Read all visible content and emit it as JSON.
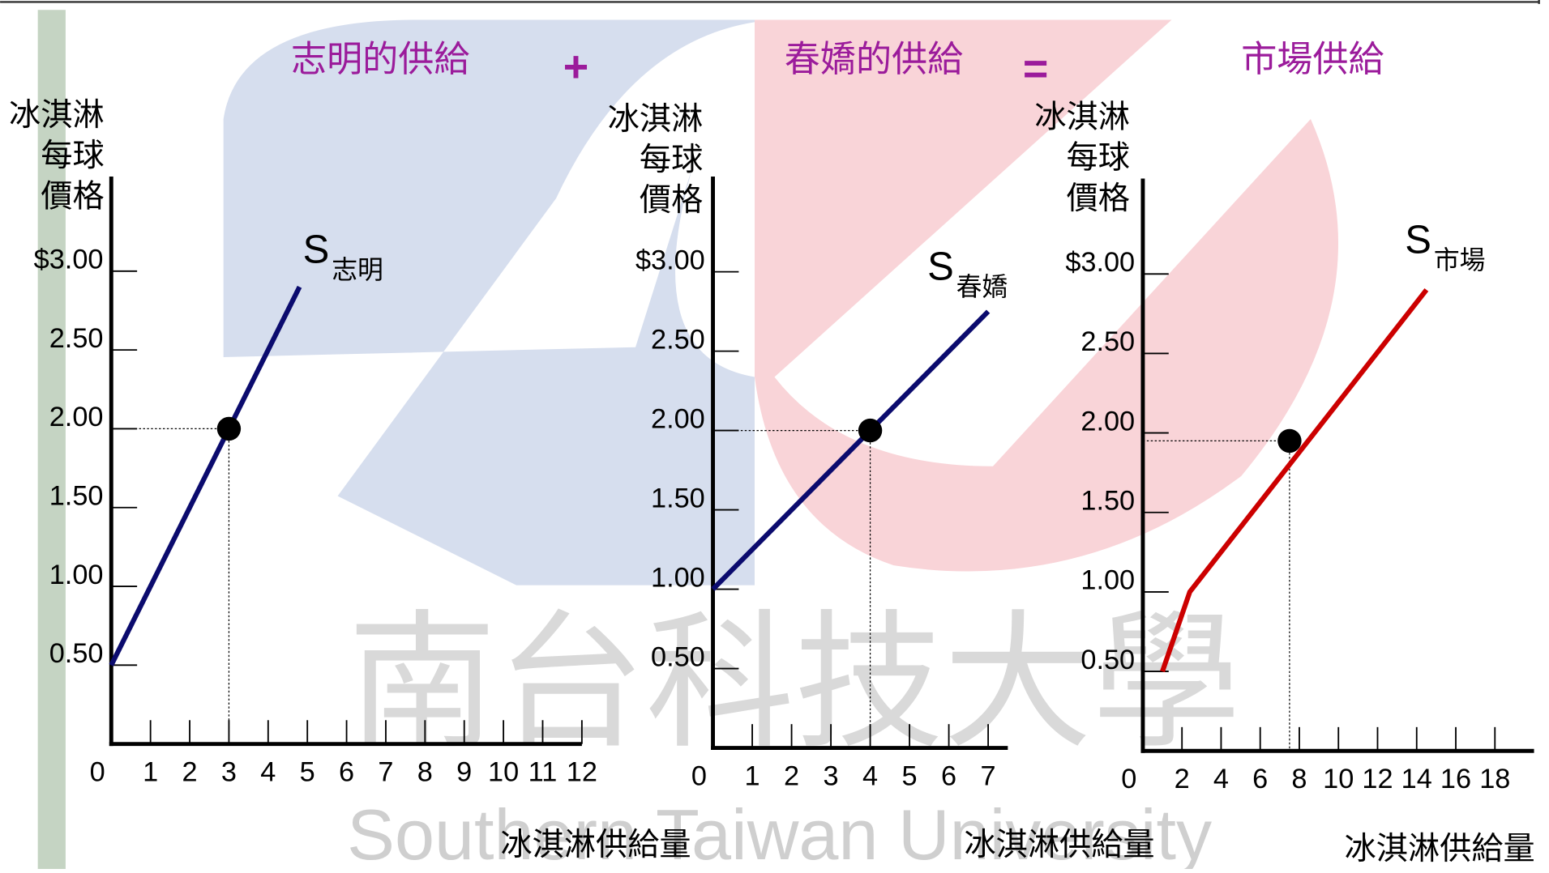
{
  "operators": [
    "+",
    "="
  ],
  "watermark": {
    "text": "Southern Taiwan University",
    "school": "南台科技大學"
  },
  "chart_data": [
    {
      "type": "line",
      "title": "志明的供給",
      "ylabel": [
        "冰淇淋",
        "每球",
        "價格"
      ],
      "xlabel": "冰淇淋供給量",
      "xlim": [
        0,
        12
      ],
      "ylim": [
        0,
        3.6
      ],
      "xticks": [
        0,
        1,
        2,
        3,
        4,
        5,
        6,
        7,
        8,
        9,
        10,
        11,
        12
      ],
      "yticks": [
        {
          "value": 3,
          "label": "$3.00"
        },
        {
          "value": 2.5,
          "label": "2.50"
        },
        {
          "value": 2,
          "label": "2.00"
        },
        {
          "value": 1.5,
          "label": "1.50"
        },
        {
          "value": 1,
          "label": "1.00"
        },
        {
          "value": 0.5,
          "label": "0.50"
        }
      ],
      "series": [
        {
          "name": "S",
          "subscript": "志明",
          "color": "#0b0b6e",
          "x": [
            0,
            4.8
          ],
          "values": [
            0.5,
            2.9
          ]
        }
      ],
      "point": {
        "x": 3,
        "y": 2
      }
    },
    {
      "type": "line",
      "title": "春嬌的供給",
      "ylabel": [
        "冰淇淋",
        "每球",
        "價格"
      ],
      "xlabel": "冰淇淋供給量",
      "xlim": [
        0,
        7.5
      ],
      "ylim": [
        0,
        3.6
      ],
      "xticks": [
        0,
        1,
        2,
        3,
        4,
        5,
        6,
        7
      ],
      "yticks": [
        {
          "value": 3,
          "label": "$3.00"
        },
        {
          "value": 2.5,
          "label": "2.50"
        },
        {
          "value": 2,
          "label": "2.00"
        },
        {
          "value": 1.5,
          "label": "1.50"
        },
        {
          "value": 1,
          "label": "1.00"
        },
        {
          "value": 0.5,
          "label": "0.50"
        }
      ],
      "series": [
        {
          "name": "S",
          "subscript": "春嬌",
          "color": "#0b0b6e",
          "x": [
            0,
            7
          ],
          "values": [
            1,
            2.75
          ]
        }
      ],
      "point": {
        "x": 4,
        "y": 2
      }
    },
    {
      "type": "line",
      "title": "市場供給",
      "ylabel": [
        "冰淇淋",
        "每球",
        "價格"
      ],
      "xlabel": "冰淇淋供給量",
      "xlim": [
        0,
        20
      ],
      "ylim": [
        0,
        3.6
      ],
      "xticks": [
        0,
        2,
        4,
        6,
        8,
        10,
        12,
        14,
        16,
        18
      ],
      "yticks": [
        {
          "value": 3,
          "label": "$3.00"
        },
        {
          "value": 2.5,
          "label": "2.50"
        },
        {
          "value": 2,
          "label": "2.00"
        },
        {
          "value": 1.5,
          "label": "1.50"
        },
        {
          "value": 1,
          "label": "1.00"
        },
        {
          "value": 0.5,
          "label": "0.50"
        }
      ],
      "series": [
        {
          "name": "S",
          "subscript": "市場",
          "color": "#cc0000",
          "x": [
            1,
            2.4,
            14.5
          ],
          "values": [
            0.5,
            1,
            2.9
          ]
        }
      ],
      "point": {
        "x": 7.5,
        "y": 1.95
      }
    }
  ]
}
